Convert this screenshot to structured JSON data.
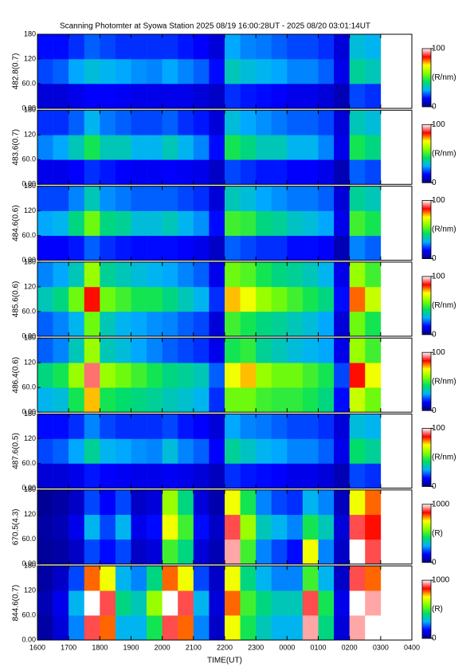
{
  "chart_data": [
    {
      "type": "heatmap",
      "title": "Scanning Photomter at Syowa Station 2025 08/19 16:00:28UT - 2025 08/20 03:01:14UT",
      "ylabel": "482.8(0.7)",
      "ylim": [
        0,
        180
      ],
      "yticks": [
        {
          "value": 0,
          "label": "0.00"
        },
        {
          "value": 60,
          "label": "60.0"
        },
        120,
        180
      ],
      "ybins": [
        0,
        60,
        120,
        180
      ],
      "clim": [
        0,
        100
      ],
      "cticks": [
        0,
        100
      ],
      "clabel": "(R/nm)",
      "colormap": [
        "#000080",
        "#0000ff",
        "#00b0ff",
        "#00e060",
        "#80ff00",
        "#ffff00",
        "#ff0000",
        "#ffffff"
      ],
      "z": [
        [
          10,
          10,
          12,
          14,
          14,
          13,
          12,
          12,
          12,
          12,
          10,
          8,
          18,
          16,
          15,
          14,
          12,
          12,
          10,
          6,
          20,
          18
        ],
        [
          20,
          22,
          28,
          32,
          30,
          28,
          26,
          25,
          28,
          25,
          22,
          15,
          35,
          32,
          30,
          28,
          25,
          25,
          22,
          12,
          38,
          35
        ],
        [
          15,
          15,
          18,
          22,
          20,
          18,
          18,
          18,
          18,
          16,
          14,
          10,
          28,
          25,
          24,
          22,
          20,
          20,
          18,
          10,
          32,
          30
        ]
      ]
    },
    {
      "type": "heatmap",
      "ylabel": "483.6(0.7)",
      "ylim": [
        0,
        180
      ],
      "yticks": [
        {
          "value": 0,
          "label": "0.00"
        },
        {
          "value": 60,
          "label": "60.0"
        },
        120,
        180
      ],
      "ybins": [
        0,
        60,
        120,
        180
      ],
      "clim": [
        0,
        100
      ],
      "cticks": [
        0,
        100
      ],
      "clabel": "(R/nm)",
      "z": [
        [
          12,
          12,
          14,
          18,
          16,
          14,
          13,
          13,
          14,
          13,
          12,
          8,
          20,
          18,
          16,
          16,
          14,
          14,
          12,
          6,
          22,
          20
        ],
        [
          25,
          28,
          35,
          45,
          35,
          35,
          30,
          30,
          35,
          30,
          25,
          15,
          45,
          40,
          35,
          35,
          30,
          30,
          25,
          12,
          45,
          40
        ],
        [
          18,
          18,
          22,
          30,
          24,
          22,
          20,
          20,
          22,
          18,
          16,
          10,
          32,
          28,
          26,
          24,
          22,
          22,
          20,
          10,
          35,
          32
        ]
      ]
    },
    {
      "type": "heatmap",
      "ylabel": "484.6(0.6)",
      "ylim": [
        0,
        180
      ],
      "yticks": [
        {
          "value": 0,
          "label": "0.00"
        },
        {
          "value": 60,
          "label": "60.0"
        },
        120,
        180
      ],
      "ybins": [
        0,
        60,
        120,
        180
      ],
      "clim": [
        0,
        100
      ],
      "cticks": [
        0,
        100
      ],
      "clabel": "(R/nm)",
      "z": [
        [
          14,
          14,
          16,
          22,
          18,
          16,
          15,
          15,
          15,
          14,
          12,
          8,
          22,
          20,
          18,
          18,
          15,
          15,
          14,
          6,
          25,
          22
        ],
        [
          28,
          30,
          40,
          55,
          40,
          38,
          32,
          32,
          35,
          30,
          26,
          15,
          50,
          48,
          40,
          38,
          34,
          32,
          28,
          12,
          50,
          45
        ],
        [
          20,
          20,
          25,
          35,
          26,
          24,
          22,
          22,
          22,
          20,
          18,
          10,
          35,
          32,
          28,
          26,
          24,
          24,
          22,
          10,
          38,
          35
        ]
      ]
    },
    {
      "type": "heatmap",
      "ylabel": "485.6(0.6)",
      "ylim": [
        0,
        180
      ],
      "yticks": [
        {
          "value": 0,
          "label": "0.00"
        },
        {
          "value": 60,
          "label": "60.0"
        },
        120,
        180
      ],
      "ybins": [
        0,
        60,
        120,
        180
      ],
      "clim": [
        0,
        100
      ],
      "cticks": [
        0,
        100
      ],
      "clabel": "(R/nm)",
      "z": [
        [
          22,
          25,
          30,
          55,
          35,
          30,
          28,
          26,
          25,
          22,
          20,
          10,
          50,
          45,
          40,
          38,
          35,
          32,
          28,
          10,
          55,
          45
        ],
        [
          35,
          40,
          55,
          85,
          55,
          50,
          45,
          45,
          40,
          35,
          30,
          18,
          75,
          70,
          60,
          55,
          50,
          45,
          40,
          15,
          80,
          65
        ],
        [
          25,
          28,
          35,
          60,
          38,
          35,
          32,
          30,
          28,
          25,
          22,
          12,
          55,
          52,
          45,
          40,
          38,
          35,
          30,
          12,
          60,
          50
        ]
      ]
    },
    {
      "type": "heatmap",
      "ylabel": "486.4(0.6)",
      "ylim": [
        0,
        180
      ],
      "yticks": [
        {
          "value": 0,
          "label": "0.00"
        },
        {
          "value": 60,
          "label": "60.0"
        },
        120,
        180
      ],
      "ybins": [
        0,
        60,
        120,
        180
      ],
      "clim": [
        0,
        100
      ],
      "cticks": [
        0,
        100
      ],
      "clabel": "(R/nm)",
      "z": [
        [
          30,
          32,
          45,
          75,
          45,
          42,
          40,
          38,
          35,
          33,
          30,
          18,
          55,
          55,
          50,
          48,
          48,
          45,
          40,
          15,
          65,
          55
        ],
        [
          40,
          45,
          60,
          92,
          60,
          55,
          50,
          45,
          40,
          38,
          35,
          22,
          70,
          75,
          60,
          55,
          55,
          50,
          45,
          20,
          85,
          70
        ],
        [
          22,
          25,
          35,
          60,
          35,
          32,
          28,
          25,
          22,
          20,
          18,
          12,
          45,
          48,
          38,
          35,
          32,
          30,
          28,
          12,
          60,
          50
        ]
      ]
    },
    {
      "type": "heatmap",
      "ylabel": "487.6(0.5)",
      "ylim": [
        0,
        180
      ],
      "yticks": [
        {
          "value": 0,
          "label": "0.00"
        },
        {
          "value": 60,
          "label": "60.0"
        },
        120,
        180
      ],
      "ybins": [
        0,
        60,
        120,
        180
      ],
      "clim": [
        0,
        100
      ],
      "cticks": [
        0,
        100
      ],
      "clabel": "(R/nm)",
      "z": [
        [
          10,
          10,
          12,
          16,
          14,
          13,
          12,
          12,
          13,
          12,
          10,
          7,
          18,
          16,
          15,
          14,
          12,
          12,
          10,
          6,
          20,
          18
        ],
        [
          20,
          22,
          28,
          38,
          30,
          28,
          26,
          25,
          32,
          25,
          22,
          14,
          38,
          34,
          30,
          28,
          25,
          25,
          22,
          12,
          42,
          38
        ],
        [
          15,
          15,
          18,
          25,
          20,
          18,
          18,
          18,
          20,
          16,
          14,
          10,
          28,
          25,
          24,
          22,
          20,
          20,
          18,
          10,
          32,
          30
        ]
      ]
    },
    {
      "type": "heatmap",
      "ylabel": "670.5(4.3)",
      "ylim": [
        0,
        180
      ],
      "yticks": [
        {
          "value": 0,
          "label": "0.00"
        },
        {
          "value": 60,
          "label": "60.0"
        },
        120,
        180
      ],
      "ybins": [
        0,
        60,
        120,
        180
      ],
      "clim": [
        0,
        1000
      ],
      "cticks": [
        0,
        1000
      ],
      "clabel": "(R)",
      "z": [
        [
          30,
          40,
          80,
          200,
          150,
          200,
          80,
          100,
          500,
          400,
          100,
          60,
          950,
          500,
          250,
          200,
          150,
          700,
          250,
          80,
          1000,
          900
        ],
        [
          40,
          60,
          120,
          300,
          200,
          300,
          120,
          150,
          700,
          500,
          150,
          80,
          900,
          600,
          350,
          300,
          250,
          450,
          350,
          100,
          900,
          850
        ],
        [
          25,
          40,
          80,
          200,
          140,
          200,
          80,
          100,
          600,
          400,
          100,
          50,
          700,
          450,
          250,
          200,
          180,
          300,
          250,
          70,
          700,
          800
        ]
      ]
    },
    {
      "type": "heatmap",
      "ylabel": "844.6(0.7)",
      "ylim": [
        0,
        180
      ],
      "yticks": [
        {
          "value": 0,
          "label": "0.00"
        },
        {
          "value": 60,
          "label": "60.0"
        },
        120,
        180
      ],
      "ybins": [
        0,
        60,
        120,
        180
      ],
      "clim": [
        0,
        1000
      ],
      "cticks": [
        0,
        1000
      ],
      "clabel": "(R)",
      "xlabel": "TIME(UT)",
      "xlim": [
        16,
        28
      ],
      "xticks": [
        {
          "value": 16,
          "label": "1600"
        },
        {
          "value": 17,
          "label": "1700"
        },
        {
          "value": 18,
          "label": "1800"
        },
        {
          "value": 19,
          "label": "1900"
        },
        {
          "value": 20,
          "label": "2000"
        },
        {
          "value": 21,
          "label": "2100"
        },
        {
          "value": 22,
          "label": "2200"
        },
        {
          "value": 23,
          "label": "2300"
        },
        {
          "value": 24,
          "label": "0000"
        },
        {
          "value": 25,
          "label": "0100"
        },
        {
          "value": 26,
          "label": "0200"
        },
        {
          "value": 27,
          "label": "0300"
        },
        {
          "value": 28,
          "label": "0400"
        }
      ],
      "xbins": [
        16,
        16.5,
        17,
        17.5,
        18,
        18.5,
        19,
        19.5,
        20,
        20.5,
        21,
        21.5,
        22,
        22.5,
        23,
        23.5,
        24,
        24.5,
        25,
        25.5,
        26,
        26.5,
        27
      ],
      "z": [
        [
          40,
          100,
          250,
          900,
          800,
          300,
          300,
          450,
          900,
          800,
          250,
          80,
          700,
          450,
          350,
          300,
          300,
          950,
          400,
          100,
          950,
          1000
        ],
        [
          60,
          120,
          300,
          1000,
          900,
          400,
          350,
          600,
          1000,
          900,
          300,
          100,
          800,
          500,
          400,
          350,
          350,
          900,
          450,
          120,
          1000,
          950
        ],
        [
          40,
          80,
          200,
          800,
          700,
          300,
          250,
          400,
          800,
          700,
          200,
          80,
          700,
          400,
          300,
          250,
          250,
          500,
          300,
          80,
          900,
          800
        ]
      ]
    }
  ]
}
